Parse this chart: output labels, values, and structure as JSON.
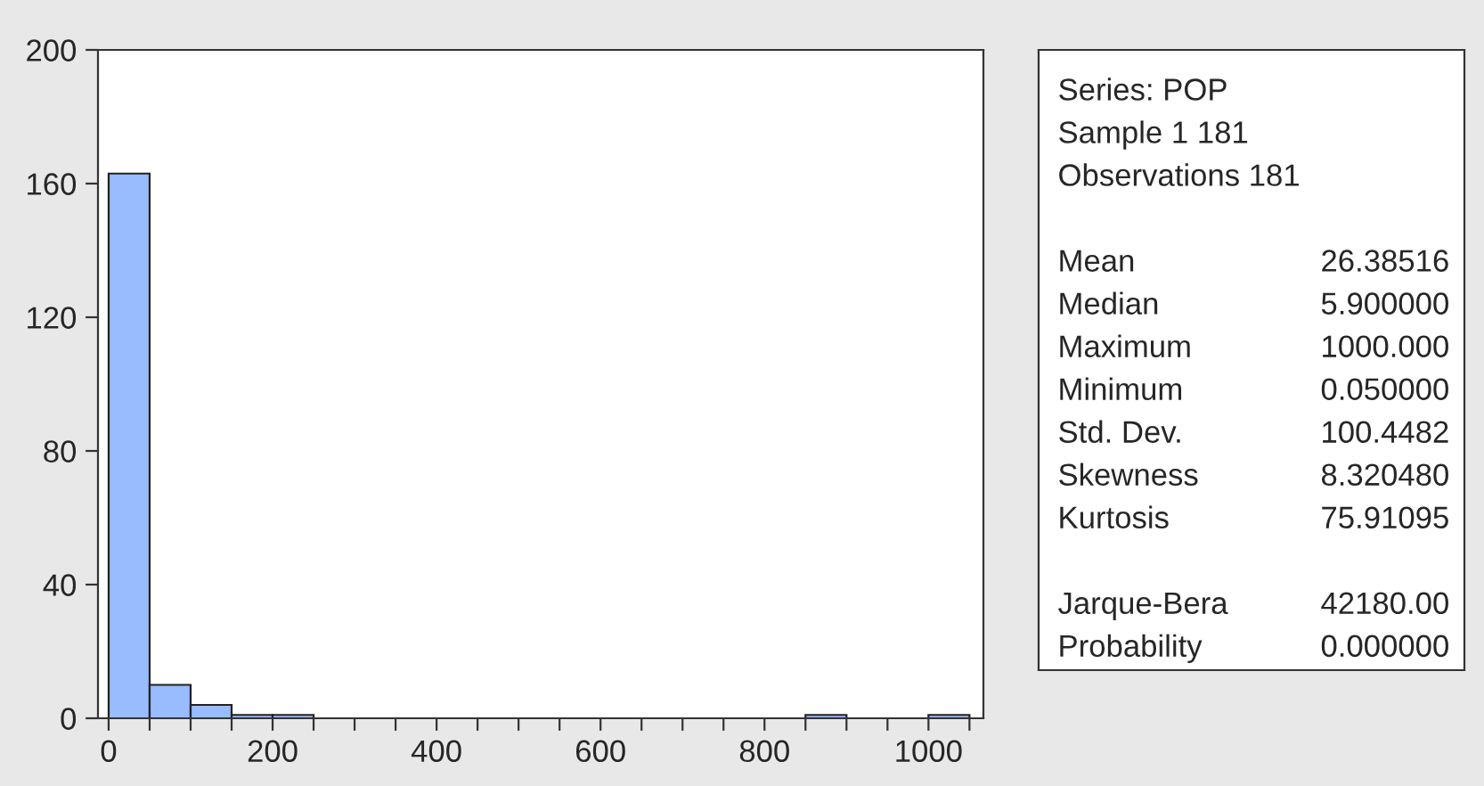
{
  "chart_data": [
    {
      "type": "histogram",
      "bins": [
        0,
        50,
        100,
        150,
        200,
        250,
        300,
        350,
        400,
        450,
        500,
        550,
        600,
        650,
        700,
        750,
        800,
        850,
        900,
        950,
        1000,
        1050
      ],
      "values": [
        163,
        10,
        4,
        1,
        1,
        0,
        0,
        0,
        0,
        0,
        0,
        0,
        0,
        0,
        0,
        0,
        0,
        1,
        0,
        0,
        1
      ],
      "color": "#99bbff",
      "xlim": [
        -13,
        1067
      ],
      "xticks": [
        0,
        {
          "value": 50,
          "label": null
        },
        {
          "value": 100,
          "label": null
        },
        {
          "value": 150,
          "label": null
        },
        200,
        {
          "value": 250,
          "label": null
        },
        {
          "value": 300,
          "label": null
        },
        {
          "value": 350,
          "label": null
        },
        400,
        {
          "value": 450,
          "label": null
        },
        {
          "value": 500,
          "label": null
        },
        {
          "value": 550,
          "label": null
        },
        600,
        {
          "value": 650,
          "label": null
        },
        {
          "value": 700,
          "label": null
        },
        {
          "value": 750,
          "label": null
        },
        800,
        {
          "value": 850,
          "label": null
        },
        {
          "value": 900,
          "label": null
        },
        {
          "value": 950,
          "label": null
        },
        1000,
        {
          "value": 1050,
          "label": null
        }
      ],
      "ylim": [
        0,
        200
      ],
      "yticks": [
        0,
        40,
        80,
        120,
        160,
        200
      ],
      "grid": false,
      "legend": false
    },
    {
      "type": "other",
      "annotations": [
        "Series: POP",
        "Sample 1 181",
        "Observations 181"
      ],
      "categories": [
        "Mean",
        "Median",
        "Maximum",
        "Minimum",
        "Std. Dev.",
        "Skewness",
        "Kurtosis",
        null,
        "Jarque-Bera",
        "Probability"
      ],
      "value_labels": [
        "26.38516",
        "5.900000",
        "1000.000",
        "0.050000",
        "100.4482",
        "8.320480",
        "75.91095",
        null,
        "42180.00",
        "0.000000"
      ]
    }
  ]
}
